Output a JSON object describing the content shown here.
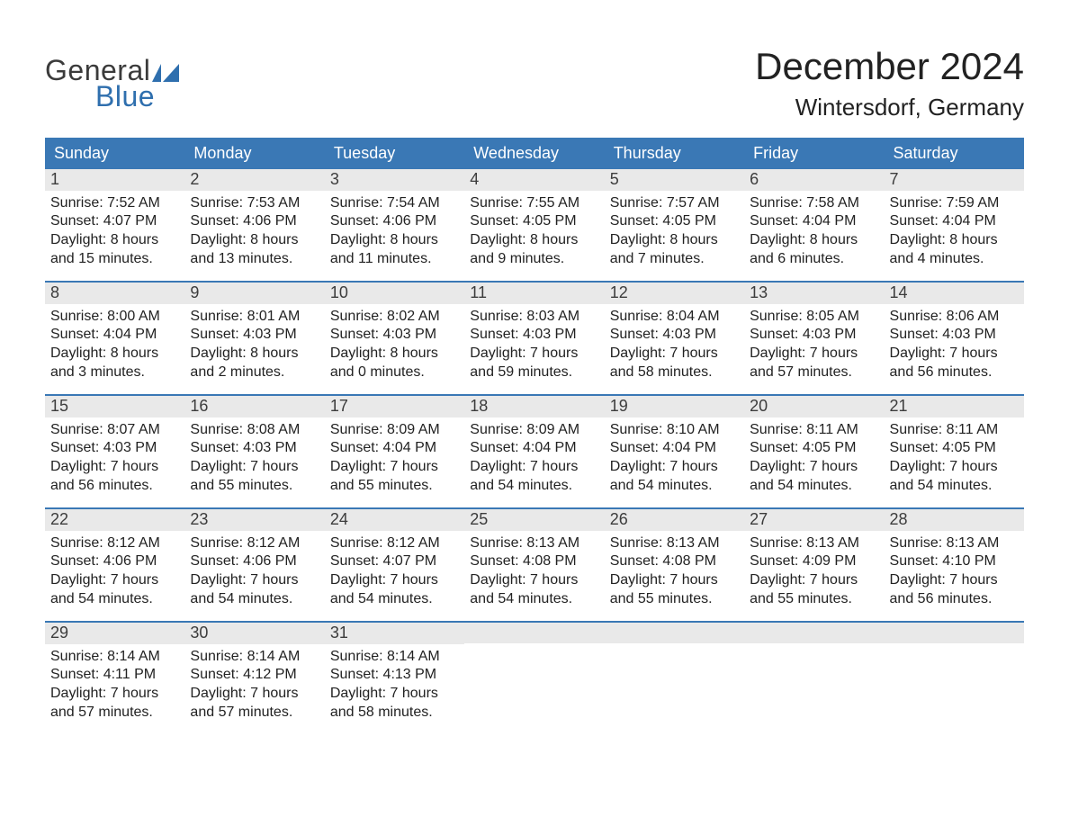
{
  "logo": {
    "word1": "General",
    "word2": "Blue",
    "flag_color": "#2f6fae",
    "word1_color": "#3b3b3b",
    "word2_color": "#2f6fae"
  },
  "title": "December 2024",
  "location": "Wintersdorf, Germany",
  "colors": {
    "header_bg": "#3a78b5",
    "header_text": "#ffffff",
    "daynum_bg": "#e9e9e9",
    "daynum_text": "#3c3c3c",
    "row_border": "#3a78b5",
    "body_text": "#222222"
  },
  "days_of_week": [
    "Sunday",
    "Monday",
    "Tuesday",
    "Wednesday",
    "Thursday",
    "Friday",
    "Saturday"
  ],
  "weeks": [
    [
      {
        "n": 1,
        "sunrise": "7:52 AM",
        "sunset": "4:07 PM",
        "dl_h": 8,
        "dl_m": 15
      },
      {
        "n": 2,
        "sunrise": "7:53 AM",
        "sunset": "4:06 PM",
        "dl_h": 8,
        "dl_m": 13
      },
      {
        "n": 3,
        "sunrise": "7:54 AM",
        "sunset": "4:06 PM",
        "dl_h": 8,
        "dl_m": 11
      },
      {
        "n": 4,
        "sunrise": "7:55 AM",
        "sunset": "4:05 PM",
        "dl_h": 8,
        "dl_m": 9
      },
      {
        "n": 5,
        "sunrise": "7:57 AM",
        "sunset": "4:05 PM",
        "dl_h": 8,
        "dl_m": 7
      },
      {
        "n": 6,
        "sunrise": "7:58 AM",
        "sunset": "4:04 PM",
        "dl_h": 8,
        "dl_m": 6
      },
      {
        "n": 7,
        "sunrise": "7:59 AM",
        "sunset": "4:04 PM",
        "dl_h": 8,
        "dl_m": 4
      }
    ],
    [
      {
        "n": 8,
        "sunrise": "8:00 AM",
        "sunset": "4:04 PM",
        "dl_h": 8,
        "dl_m": 3
      },
      {
        "n": 9,
        "sunrise": "8:01 AM",
        "sunset": "4:03 PM",
        "dl_h": 8,
        "dl_m": 2
      },
      {
        "n": 10,
        "sunrise": "8:02 AM",
        "sunset": "4:03 PM",
        "dl_h": 8,
        "dl_m": 0
      },
      {
        "n": 11,
        "sunrise": "8:03 AM",
        "sunset": "4:03 PM",
        "dl_h": 7,
        "dl_m": 59
      },
      {
        "n": 12,
        "sunrise": "8:04 AM",
        "sunset": "4:03 PM",
        "dl_h": 7,
        "dl_m": 58
      },
      {
        "n": 13,
        "sunrise": "8:05 AM",
        "sunset": "4:03 PM",
        "dl_h": 7,
        "dl_m": 57
      },
      {
        "n": 14,
        "sunrise": "8:06 AM",
        "sunset": "4:03 PM",
        "dl_h": 7,
        "dl_m": 56
      }
    ],
    [
      {
        "n": 15,
        "sunrise": "8:07 AM",
        "sunset": "4:03 PM",
        "dl_h": 7,
        "dl_m": 56
      },
      {
        "n": 16,
        "sunrise": "8:08 AM",
        "sunset": "4:03 PM",
        "dl_h": 7,
        "dl_m": 55
      },
      {
        "n": 17,
        "sunrise": "8:09 AM",
        "sunset": "4:04 PM",
        "dl_h": 7,
        "dl_m": 55
      },
      {
        "n": 18,
        "sunrise": "8:09 AM",
        "sunset": "4:04 PM",
        "dl_h": 7,
        "dl_m": 54
      },
      {
        "n": 19,
        "sunrise": "8:10 AM",
        "sunset": "4:04 PM",
        "dl_h": 7,
        "dl_m": 54
      },
      {
        "n": 20,
        "sunrise": "8:11 AM",
        "sunset": "4:05 PM",
        "dl_h": 7,
        "dl_m": 54
      },
      {
        "n": 21,
        "sunrise": "8:11 AM",
        "sunset": "4:05 PM",
        "dl_h": 7,
        "dl_m": 54
      }
    ],
    [
      {
        "n": 22,
        "sunrise": "8:12 AM",
        "sunset": "4:06 PM",
        "dl_h": 7,
        "dl_m": 54
      },
      {
        "n": 23,
        "sunrise": "8:12 AM",
        "sunset": "4:06 PM",
        "dl_h": 7,
        "dl_m": 54
      },
      {
        "n": 24,
        "sunrise": "8:12 AM",
        "sunset": "4:07 PM",
        "dl_h": 7,
        "dl_m": 54
      },
      {
        "n": 25,
        "sunrise": "8:13 AM",
        "sunset": "4:08 PM",
        "dl_h": 7,
        "dl_m": 54
      },
      {
        "n": 26,
        "sunrise": "8:13 AM",
        "sunset": "4:08 PM",
        "dl_h": 7,
        "dl_m": 55
      },
      {
        "n": 27,
        "sunrise": "8:13 AM",
        "sunset": "4:09 PM",
        "dl_h": 7,
        "dl_m": 55
      },
      {
        "n": 28,
        "sunrise": "8:13 AM",
        "sunset": "4:10 PM",
        "dl_h": 7,
        "dl_m": 56
      }
    ],
    [
      {
        "n": 29,
        "sunrise": "8:14 AM",
        "sunset": "4:11 PM",
        "dl_h": 7,
        "dl_m": 57
      },
      {
        "n": 30,
        "sunrise": "8:14 AM",
        "sunset": "4:12 PM",
        "dl_h": 7,
        "dl_m": 57
      },
      {
        "n": 31,
        "sunrise": "8:14 AM",
        "sunset": "4:13 PM",
        "dl_h": 7,
        "dl_m": 58
      },
      null,
      null,
      null,
      null
    ]
  ],
  "labels": {
    "sunrise": "Sunrise:",
    "sunset": "Sunset:",
    "daylight": "Daylight:",
    "hours": "hours",
    "and": "and",
    "minutes": "minutes."
  }
}
